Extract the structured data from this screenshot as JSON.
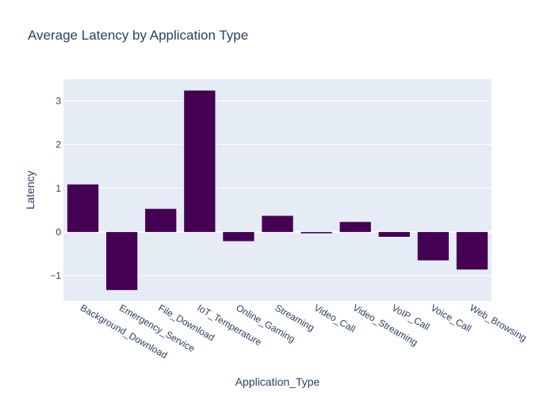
{
  "chart_data": {
    "type": "bar",
    "title": "Average Latency by Application Type",
    "xlabel": "Application_Type",
    "ylabel": "Latency",
    "categories": [
      "Background_Download",
      "Emergency_Service",
      "File_Download",
      "IoT_Temperature",
      "Online_Gaming",
      "Streaming",
      "Video_Call",
      "Video_Streaming",
      "VoIP_Call",
      "Voice_Call",
      "Web_Browsing"
    ],
    "values": [
      1.09,
      -1.33,
      0.53,
      3.24,
      -0.21,
      0.37,
      -0.03,
      0.23,
      -0.11,
      -0.65,
      -0.86
    ],
    "ylim": [
      -1.58,
      3.5
    ],
    "yticks": [
      -1,
      0,
      1,
      2,
      3
    ],
    "ytick_labels": [
      "−1",
      "0",
      "1",
      "2",
      "3"
    ],
    "colors": {
      "bar": "#440154",
      "plot_bg": "#e5ecf6",
      "text": "#2a3f5f"
    },
    "grid": true,
    "legend": "none"
  }
}
